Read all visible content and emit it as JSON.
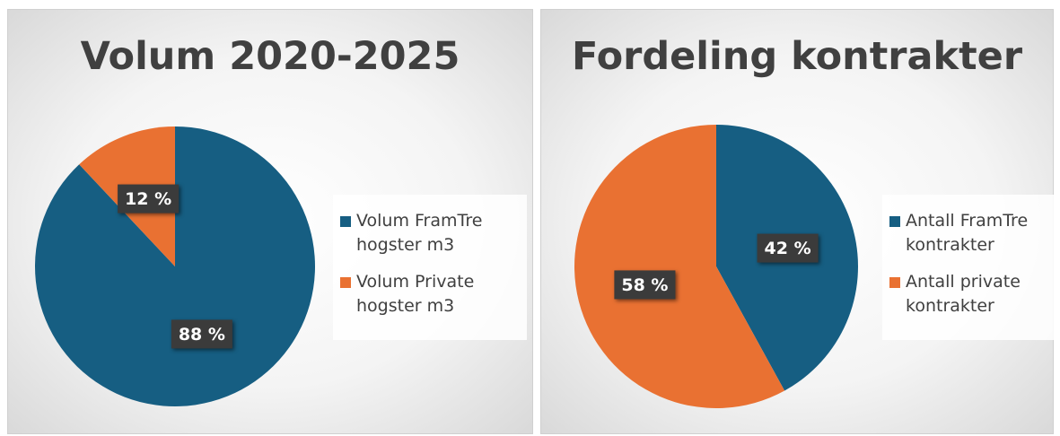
{
  "chart_data": [
    {
      "type": "pie",
      "title": "Volum 2020-2025",
      "categories": [
        "Volum FramTre hogster m3",
        "Volum Private hogster m3"
      ],
      "values": [
        88,
        12
      ],
      "value_labels": [
        "88 %",
        "12 %"
      ],
      "colors": [
        "#165e82",
        "#e97132"
      ],
      "legend": "right"
    },
    {
      "type": "pie",
      "title": "Fordeling kontrakter",
      "categories": [
        "Antall FramTre kontrakter",
        "Antall private kontrakter"
      ],
      "values": [
        42,
        58
      ],
      "value_labels": [
        "42 %",
        "58 %"
      ],
      "colors": [
        "#165e82",
        "#e97132"
      ],
      "legend": "right"
    }
  ]
}
